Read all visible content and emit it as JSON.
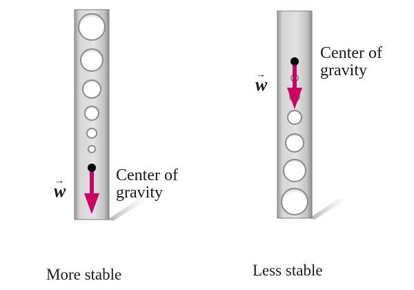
{
  "left_panel": {
    "vector_symbol": "w",
    "cg_label_line1": "Center of",
    "cg_label_line2": "gravity",
    "caption": "More stable"
  },
  "right_panel": {
    "vector_symbol": "w",
    "cg_label_line1": "Center of",
    "cg_label_line2": "gravity",
    "caption": "Less stable"
  },
  "colors": {
    "bar": "#d2d2d2",
    "arrow": "#cc0066",
    "cg_dot": "#000000"
  }
}
